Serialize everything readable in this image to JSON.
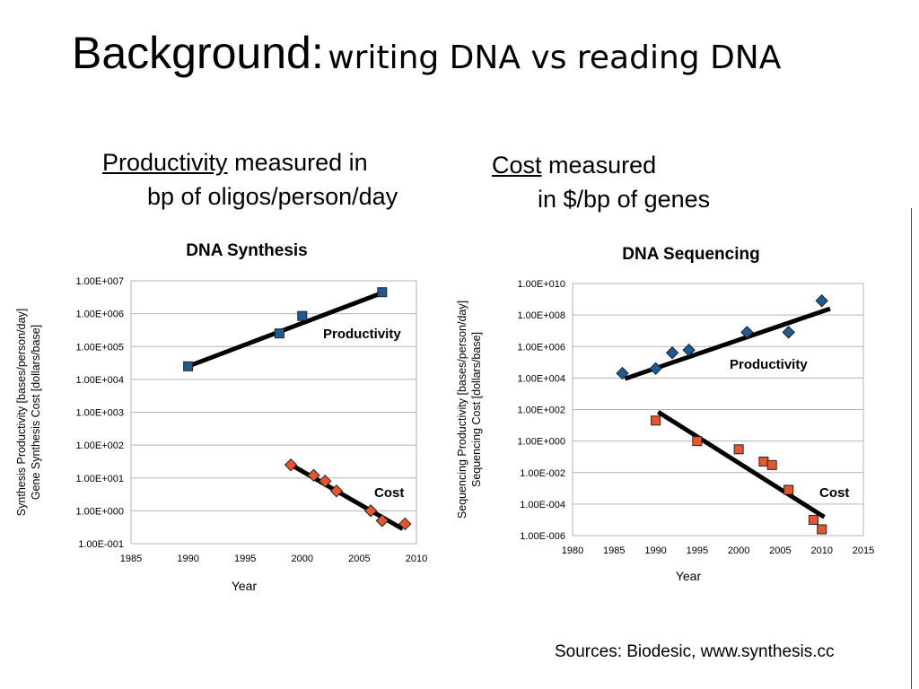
{
  "slide": {
    "title_main": "Background:",
    "title_rest": "writing DNA vs reading DNA",
    "caption_left": {
      "underlined": "Productivity",
      "rest": "measured in",
      "line2": "bp of oligos/person/day"
    },
    "caption_right": {
      "underlined": "Cost",
      "rest": "measured",
      "line2": "in $/bp of genes"
    },
    "source": "Sources: Biodesic, www.synthesis.cc"
  },
  "chart_data": [
    {
      "type": "scatter",
      "title": "DNA Synthesis",
      "xlabel": "Year",
      "ylabel_line1": "Synthesis Productivity [bases/person/day]",
      "ylabel_line2": "Gene Synthesis Cost [dollars/base]",
      "xlim": [
        1985,
        2010
      ],
      "x_ticks": [
        "1985",
        "1990",
        "1995",
        "2000",
        "2005",
        "2010"
      ],
      "x_tick_values": [
        1985,
        1990,
        1995,
        2000,
        2005,
        2010
      ],
      "y_scale": "log",
      "ylim_exponents": [
        -1,
        7
      ],
      "y_ticks": [
        "1.00E-001",
        "1.00E+000",
        "1.00E+001",
        "1.00E+002",
        "1.00E+003",
        "1.00E+004",
        "1.00E+005",
        "1.00E+006",
        "1.00E+007"
      ],
      "grid": true,
      "series": [
        {
          "name": "Productivity",
          "color": "#1f5a96",
          "marker": "square",
          "points": [
            [
              1990,
              25000
            ],
            [
              1998,
              250000
            ],
            [
              2000,
              850000
            ],
            [
              2007,
              4500000
            ]
          ],
          "trend": [
            [
              1990,
              25000
            ],
            [
              2007.3,
              4700000
            ]
          ]
        },
        {
          "name": "Cost",
          "color": "#e8552a",
          "marker": "diamond",
          "points": [
            [
              1999,
              25
            ],
            [
              2001,
              12
            ],
            [
              2002,
              8
            ],
            [
              2003,
              4
            ],
            [
              2006,
              1
            ],
            [
              2007,
              0.5
            ],
            [
              2009,
              0.4
            ]
          ],
          "trend": [
            [
              1999.3,
              22
            ],
            [
              2008.8,
              0.28
            ]
          ]
        }
      ]
    },
    {
      "type": "scatter",
      "title": "DNA Sequencing",
      "xlabel": "Year",
      "ylabel_line1": "Sequencing Productivity [bases/person/day]",
      "ylabel_line2": "Sequencing Cost [dollars/base]",
      "xlim": [
        1980,
        2015
      ],
      "x_ticks": [
        "1980",
        "1985",
        "1990",
        "1995",
        "2000",
        "2005",
        "2010",
        "2015"
      ],
      "x_tick_values": [
        1980,
        1985,
        1990,
        1995,
        2000,
        2005,
        2010,
        2015
      ],
      "y_scale": "log",
      "ylim_exponents": [
        -6,
        10
      ],
      "y_ticks": [
        "1.00E-006",
        "1.00E-004",
        "1.00E-002",
        "1.00E+000",
        "1.00E+002",
        "1.00E+004",
        "1.00E+006",
        "1.00E+008",
        "1.00E+010"
      ],
      "y_tick_exponents": [
        -6,
        -4,
        -2,
        0,
        2,
        4,
        6,
        8,
        10
      ],
      "grid": true,
      "series": [
        {
          "name": "Productivity",
          "color": "#1f5a96",
          "marker": "diamond",
          "points": [
            [
              1986,
              20000
            ],
            [
              1990,
              40000
            ],
            [
              1992,
              400000
            ],
            [
              1994,
              600000
            ],
            [
              2001,
              8000000
            ],
            [
              2006,
              8000000
            ],
            [
              2010,
              800000000
            ]
          ],
          "trend": [
            [
              1986.3,
              9000
            ],
            [
              2011,
              250000000
            ]
          ]
        },
        {
          "name": "Cost",
          "color": "#e8552a",
          "marker": "square",
          "points": [
            [
              1990,
              20
            ],
            [
              1995,
              1
            ],
            [
              2000,
              0.3
            ],
            [
              2003,
              0.05
            ],
            [
              2004,
              0.03
            ],
            [
              2006,
              0.0008
            ],
            [
              2009,
              1e-05
            ],
            [
              2010,
              2.5e-06
            ]
          ],
          "trend": [
            [
              1990.3,
              70
            ],
            [
              2010.3,
              1.5e-05
            ]
          ]
        }
      ]
    }
  ]
}
